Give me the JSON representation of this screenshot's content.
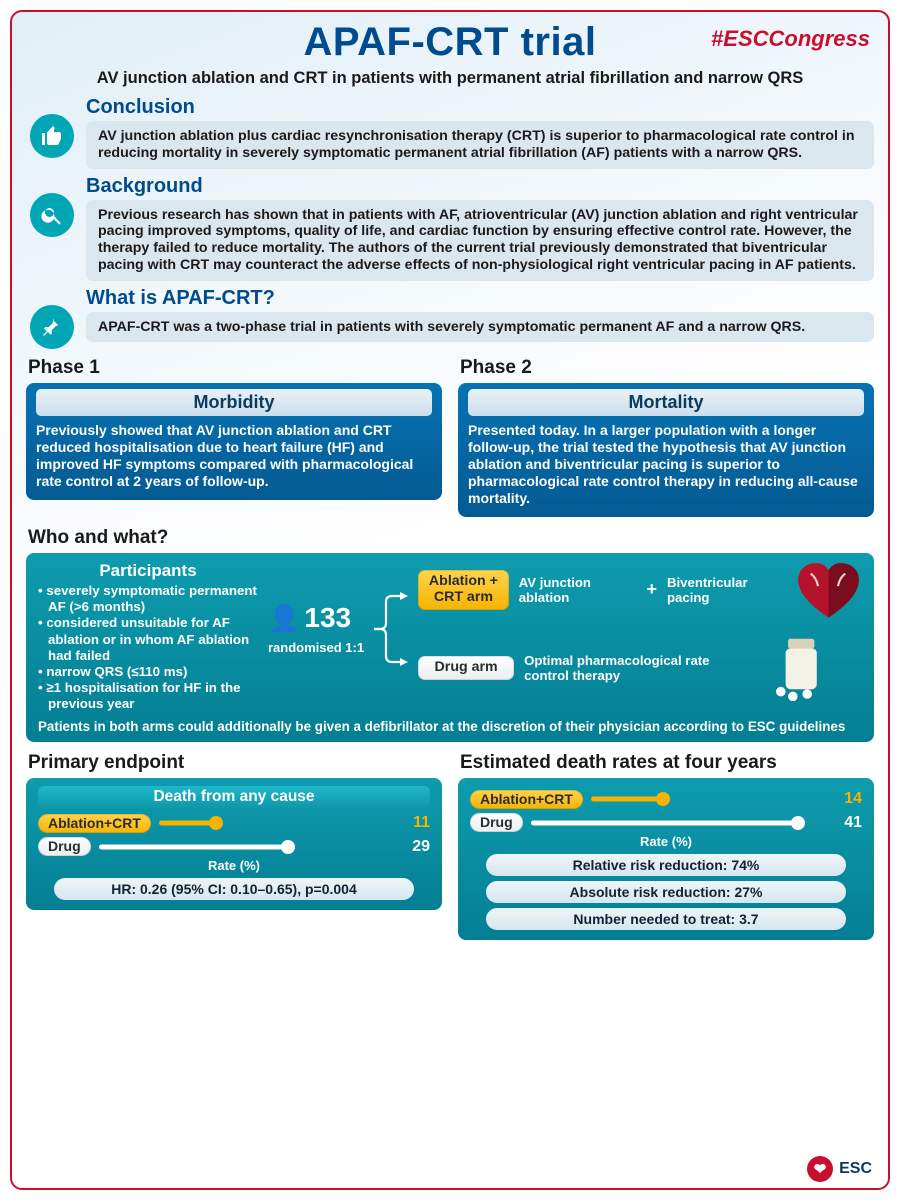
{
  "colors": {
    "brand_red": "#c8102e",
    "brand_blue": "#004b8d",
    "teal_top": "#0e9cae",
    "teal_bottom": "#047e93",
    "panel_grey": "#dbe7ee",
    "yellow": "#f6b400",
    "white": "#ffffff",
    "bar_yellow": "#f6b400",
    "bar_white": "#ffffff"
  },
  "header": {
    "title": "APAF-CRT trial",
    "hashtag": "#ESCCongress",
    "subtitle": "AV junction ablation and CRT in patients with permanent atrial fibrillation and narrow QRS"
  },
  "sections": {
    "conclusion": {
      "heading": "Conclusion",
      "text": "AV junction ablation plus cardiac resynchronisation therapy (CRT) is superior to pharmacological rate control in reducing mortality in severely symptomatic permanent atrial fibrillation (AF) patients with a narrow QRS."
    },
    "background": {
      "heading": "Background",
      "text": "Previous research has shown that in patients with AF, atrioventricular (AV) junction ablation and right ventricular pacing improved symptoms, quality of life, and cardiac function by ensuring effective control rate. However, the therapy failed to reduce mortality.  The authors of the current trial previously demonstrated that biventricular pacing with CRT may counteract the adverse effects of non-physiological right ventricular pacing in AF patients."
    },
    "what": {
      "heading": "What is APAF-CRT?",
      "text": "APAF-CRT was a two-phase trial in patients with severely symptomatic permanent AF and a narrow QRS."
    }
  },
  "phases": {
    "p1": {
      "label": "Phase 1",
      "header": "Morbidity",
      "text": "Previously showed that AV junction ablation and CRT reduced hospitalisation due to heart failure (HF) and improved HF symptoms compared with pharmacological rate control at 2 years of follow-up."
    },
    "p2": {
      "label": "Phase 2",
      "header": "Mortality",
      "text": "Presented today. In a larger population with a longer follow-up, the trial tested the hypothesis that AV junction ablation and biventricular pacing is superior to pharmacological rate control therapy in reducing all-cause mortality."
    }
  },
  "who": {
    "heading": "Who and what?",
    "participants_title": "Participants",
    "bullets": [
      "severely symptomatic permanent AF (>6 months)",
      "considered unsuitable for AF ablation or in whom AF ablation had failed",
      "narrow QRS (≤110 ms)",
      "≥1 hospitalisation for HF in the previous year"
    ],
    "n": "133",
    "randomised": "randomised 1:1",
    "arm1_label": "Ablation + CRT arm",
    "arm1_desc_a": "AV junction ablation",
    "arm1_plus": "+",
    "arm1_desc_b": "Biventricular pacing",
    "arm2_label": "Drug arm",
    "arm2_desc": "Optimal pharmacological rate control therapy",
    "footnote": "Patients in both arms could additionally be given a defibrillator at the discretion of their physician according to ESC guidelines"
  },
  "primary": {
    "heading": "Primary endpoint",
    "title": "Death from any cause",
    "rows": [
      {
        "label": "Ablation+CRT",
        "value": 11,
        "color": "#f6b400",
        "text_color": "#f6b400"
      },
      {
        "label": "Drug",
        "value": 29,
        "color": "#ffffff",
        "text_color": "#ffffff"
      }
    ],
    "axis_max": 45,
    "rate_label": "Rate (%)",
    "stat": "HR: 0.26 (95% CI: 0.10–0.65), p=0.004",
    "stat_p_italic": "p=0.004"
  },
  "estimated": {
    "heading": "Estimated death rates at four years",
    "rows": [
      {
        "label": "Ablation+CRT",
        "value": 14,
        "color": "#f6b400",
        "text_color": "#f6b400"
      },
      {
        "label": "Drug",
        "value": 41,
        "color": "#ffffff",
        "text_color": "#ffffff"
      }
    ],
    "axis_max": 45,
    "rate_label": "Rate (%)",
    "stats": [
      "Relative risk reduction: 74%",
      "Absolute risk reduction: 27%",
      "Number needed to treat: 3.7"
    ]
  },
  "logo": {
    "text": "ESC"
  }
}
